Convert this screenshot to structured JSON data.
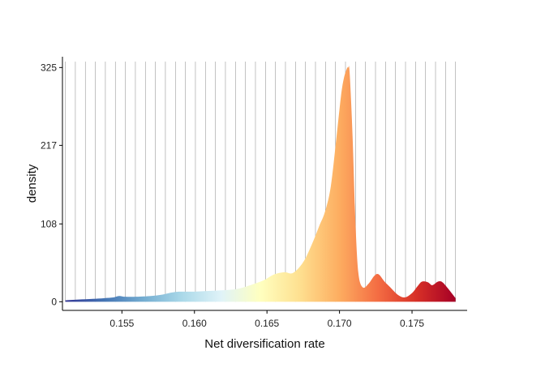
{
  "chart_data": {
    "type": "area",
    "xlabel": "Net diversification rate",
    "ylabel": "density",
    "xlim": [
      0.1509,
      0.1788
    ],
    "ylim": [
      -12,
      340
    ],
    "x_ticks": [
      0.155,
      0.16,
      0.165,
      0.17,
      0.175
    ],
    "x_tick_labels": [
      "0.155",
      "0.160",
      "0.165",
      "0.170",
      "0.175"
    ],
    "y_ticks": [
      0,
      108,
      217,
      325
    ],
    "y_tick_labels": [
      "0",
      "108",
      "217",
      "325"
    ],
    "x_range": [
      0.1511,
      0.178
    ],
    "vertical_gridlines": 40,
    "fill_gradient": "red-yellow-blue by x (blue at low rates, red at high rates)",
    "colors": [
      "#313695",
      "#4575b4",
      "#74add1",
      "#abd9e9",
      "#e0f3f8",
      "#ffffbf",
      "#fee090",
      "#fdae61",
      "#f46d43",
      "#d73027",
      "#a50026"
    ],
    "density_points": [
      [
        0.1511,
        2
      ],
      [
        0.152,
        3
      ],
      [
        0.153,
        4
      ],
      [
        0.1538,
        5
      ],
      [
        0.1544,
        6
      ],
      [
        0.1548,
        8
      ],
      [
        0.1552,
        7
      ],
      [
        0.156,
        7
      ],
      [
        0.157,
        8
      ],
      [
        0.1578,
        10
      ],
      [
        0.1585,
        13
      ],
      [
        0.159,
        14
      ],
      [
        0.16,
        14
      ],
      [
        0.161,
        15
      ],
      [
        0.162,
        16
      ],
      [
        0.163,
        18
      ],
      [
        0.164,
        24
      ],
      [
        0.1648,
        30
      ],
      [
        0.1655,
        38
      ],
      [
        0.1662,
        41
      ],
      [
        0.1668,
        40
      ],
      [
        0.1675,
        55
      ],
      [
        0.1681,
        80
      ],
      [
        0.1686,
        105
      ],
      [
        0.169,
        125
      ],
      [
        0.1694,
        160
      ],
      [
        0.1698,
        230
      ],
      [
        0.1701,
        285
      ],
      [
        0.1703,
        310
      ],
      [
        0.1705,
        323
      ],
      [
        0.1706,
        325
      ],
      [
        0.1707,
        318
      ],
      [
        0.1709,
        230
      ],
      [
        0.1711,
        110
      ],
      [
        0.1713,
        40
      ],
      [
        0.1716,
        20
      ],
      [
        0.172,
        25
      ],
      [
        0.1724,
        36
      ],
      [
        0.1727,
        38
      ],
      [
        0.1731,
        28
      ],
      [
        0.1735,
        20
      ],
      [
        0.174,
        10
      ],
      [
        0.1745,
        6
      ],
      [
        0.175,
        12
      ],
      [
        0.1754,
        22
      ],
      [
        0.1757,
        28
      ],
      [
        0.1761,
        27
      ],
      [
        0.1764,
        23
      ],
      [
        0.1768,
        28
      ],
      [
        0.1771,
        27
      ],
      [
        0.1775,
        18
      ],
      [
        0.178,
        5
      ]
    ]
  }
}
